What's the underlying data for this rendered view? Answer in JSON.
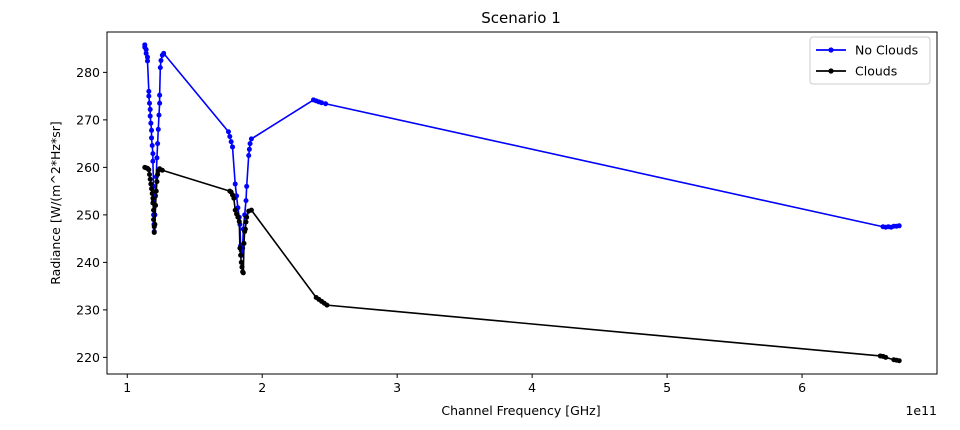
{
  "chart_data": {
    "type": "line",
    "title": "Scenario 1",
    "xlabel": "Channel Frequency [GHz]",
    "ylabel": "Radiance [W/(m^2*Hz*sr]",
    "x_offset_label": "1e11",
    "xlim": [
      0.85,
      7.0
    ],
    "ylim": [
      216.5,
      288.5
    ],
    "xticks": [
      "1",
      "2",
      "3",
      "4",
      "5",
      "6"
    ],
    "yticks": [
      "220",
      "230",
      "240",
      "250",
      "260",
      "270",
      "280"
    ],
    "legend_position": "top-right",
    "grid": false,
    "series": [
      {
        "name": "No Clouds",
        "color": "#0000ff",
        "points": [
          [
            1.13,
            285.8
          ],
          [
            1.13,
            285.3
          ],
          [
            1.14,
            284.8
          ],
          [
            1.14,
            284.0
          ],
          [
            1.15,
            283.2
          ],
          [
            1.15,
            282.4
          ],
          [
            1.16,
            276.0
          ],
          [
            1.16,
            275.0
          ],
          [
            1.165,
            273.5
          ],
          [
            1.17,
            272.2
          ],
          [
            1.17,
            270.8
          ],
          [
            1.175,
            269.3
          ],
          [
            1.18,
            267.8
          ],
          [
            1.18,
            266.2
          ],
          [
            1.185,
            264.6
          ],
          [
            1.19,
            262.9
          ],
          [
            1.19,
            261.3
          ],
          [
            1.195,
            256.0
          ],
          [
            1.195,
            253.0
          ],
          [
            1.195,
            250.0
          ],
          [
            1.198,
            248.0
          ],
          [
            1.2,
            246.5
          ],
          [
            1.205,
            250.0
          ],
          [
            1.21,
            254.0
          ],
          [
            1.215,
            258.0
          ],
          [
            1.22,
            262.0
          ],
          [
            1.225,
            265.0
          ],
          [
            1.23,
            268.0
          ],
          [
            1.235,
            271.0
          ],
          [
            1.24,
            273.5
          ],
          [
            1.24,
            275.2
          ],
          [
            1.245,
            281.0
          ],
          [
            1.25,
            282.5
          ],
          [
            1.26,
            283.6
          ],
          [
            1.27,
            284.0
          ],
          [
            1.75,
            267.5
          ],
          [
            1.76,
            266.5
          ],
          [
            1.77,
            265.4
          ],
          [
            1.78,
            264.3
          ],
          [
            1.8,
            256.5
          ],
          [
            1.81,
            254.0
          ],
          [
            1.82,
            251.5
          ],
          [
            1.83,
            249.5
          ],
          [
            1.835,
            248.0
          ],
          [
            1.84,
            243.5
          ],
          [
            1.845,
            242.5
          ],
          [
            1.85,
            241.5
          ],
          [
            1.855,
            243.0
          ],
          [
            1.86,
            247.0
          ],
          [
            1.87,
            250.0
          ],
          [
            1.88,
            253.0
          ],
          [
            1.885,
            256.0
          ],
          [
            1.9,
            262.5
          ],
          [
            1.905,
            263.8
          ],
          [
            1.91,
            265.0
          ],
          [
            1.92,
            266.0
          ],
          [
            2.38,
            274.2
          ],
          [
            2.4,
            274.0
          ],
          [
            2.42,
            273.8
          ],
          [
            2.44,
            273.6
          ],
          [
            2.47,
            273.4
          ],
          [
            6.6,
            247.5
          ],
          [
            6.62,
            247.4
          ],
          [
            6.64,
            247.5
          ],
          [
            6.66,
            247.4
          ],
          [
            6.68,
            247.6
          ],
          [
            6.7,
            247.6
          ],
          [
            6.72,
            247.7
          ]
        ]
      },
      {
        "name": "Clouds",
        "color": "#000000",
        "points": [
          [
            1.13,
            260.0
          ],
          [
            1.14,
            259.9
          ],
          [
            1.15,
            259.8
          ],
          [
            1.16,
            259.5
          ],
          [
            1.165,
            258.5
          ],
          [
            1.17,
            257.5
          ],
          [
            1.175,
            256.5
          ],
          [
            1.18,
            255.5
          ],
          [
            1.185,
            254.5
          ],
          [
            1.19,
            253.5
          ],
          [
            1.19,
            252.5
          ],
          [
            1.195,
            251.0
          ],
          [
            1.195,
            249.0
          ],
          [
            1.2,
            247.5
          ],
          [
            1.2,
            246.3
          ],
          [
            1.205,
            248.0
          ],
          [
            1.21,
            252.0
          ],
          [
            1.215,
            255.0
          ],
          [
            1.22,
            257.0
          ],
          [
            1.225,
            258.5
          ],
          [
            1.23,
            259.3
          ],
          [
            1.24,
            259.7
          ],
          [
            1.26,
            259.4
          ],
          [
            1.76,
            255.0
          ],
          [
            1.77,
            254.8
          ],
          [
            1.78,
            254.2
          ],
          [
            1.79,
            253.5
          ],
          [
            1.8,
            251.0
          ],
          [
            1.81,
            250.2
          ],
          [
            1.82,
            249.5
          ],
          [
            1.83,
            248.6
          ],
          [
            1.835,
            243.0
          ],
          [
            1.84,
            241.5
          ],
          [
            1.845,
            240.0
          ],
          [
            1.85,
            239.0
          ],
          [
            1.855,
            238.0
          ],
          [
            1.86,
            237.8
          ],
          [
            1.865,
            244.0
          ],
          [
            1.87,
            246.5
          ],
          [
            1.875,
            247.0
          ],
          [
            1.88,
            248.5
          ],
          [
            1.885,
            249.5
          ],
          [
            1.9,
            250.8
          ],
          [
            1.92,
            251.0
          ],
          [
            2.4,
            232.6
          ],
          [
            2.42,
            232.2
          ],
          [
            2.44,
            231.8
          ],
          [
            2.46,
            231.4
          ],
          [
            2.48,
            231.0
          ],
          [
            6.58,
            220.3
          ],
          [
            6.6,
            220.2
          ],
          [
            6.62,
            220.0
          ],
          [
            6.68,
            219.5
          ],
          [
            6.7,
            219.4
          ],
          [
            6.72,
            219.3
          ]
        ]
      }
    ]
  }
}
